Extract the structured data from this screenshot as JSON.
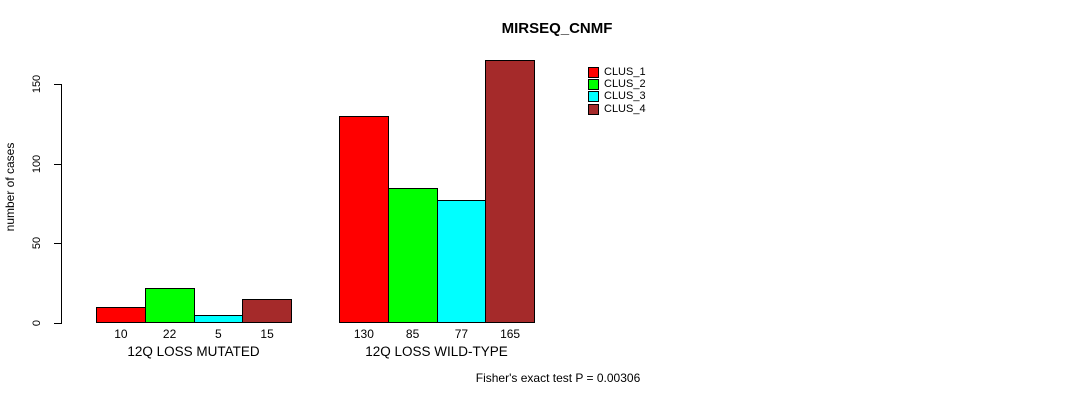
{
  "title": "MIRSEQ_CNMF",
  "ylabel": "number of cases",
  "footer": "Fisher's exact test P = 0.00306",
  "legend": {
    "items": [
      {
        "label": "CLUS_1",
        "color": "#FF0000"
      },
      {
        "label": "CLUS_2",
        "color": "#00FF00"
      },
      {
        "label": "CLUS_3",
        "color": "#00FFFF"
      },
      {
        "label": "CLUS_4",
        "color": "#A52A2A"
      }
    ]
  },
  "chart_data": {
    "type": "bar",
    "title": "MIRSEQ_CNMF",
    "categories": [
      "12Q LOSS MUTATED",
      "12Q LOSS WILD-TYPE"
    ],
    "series": [
      {
        "name": "CLUS_1",
        "color": "#FF0000",
        "values": [
          10,
          130
        ]
      },
      {
        "name": "CLUS_2",
        "color": "#00FF00",
        "values": [
          22,
          85
        ]
      },
      {
        "name": "CLUS_3",
        "color": "#00FFFF",
        "values": [
          5,
          77
        ]
      },
      {
        "name": "CLUS_4",
        "color": "#A52A2A",
        "values": [
          15,
          165
        ]
      }
    ],
    "bar_value_labels_shown": true,
    "xlabel": "",
    "ylabel": "number of cases",
    "yticks": [
      0,
      50,
      100,
      150
    ],
    "ylim": [
      0,
      170
    ],
    "grid": false,
    "legend_position": "upper-right-inside",
    "annotation": "Fisher's exact test P = 0.00306"
  }
}
